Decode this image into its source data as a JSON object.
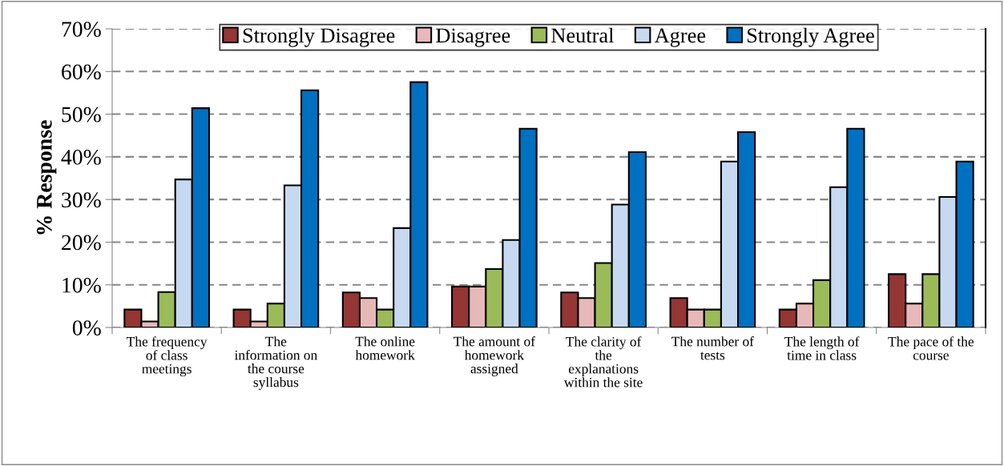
{
  "chart_data": {
    "type": "bar",
    "ylabel": "% Response",
    "categories": [
      "The frequency\nof class\nmeetings",
      "The\ninformation on\nthe course\nsyllabus",
      "The online\nhomework",
      "The amount of\nhomework\nassigned",
      "The clarity of\nthe\nexplanations\nwithin the site",
      "The number of\ntests",
      "The length of\ntime in class",
      "The pace of the\ncourse"
    ],
    "series": [
      {
        "name": "Strongly Disagree",
        "color": "#943634",
        "values": [
          4.2,
          4.2,
          8.2,
          9.6,
          8.2,
          6.9,
          4.2,
          12.5
        ]
      },
      {
        "name": "Disagree",
        "color": "#e6b9b8",
        "values": [
          1.4,
          1.4,
          6.9,
          9.6,
          6.9,
          4.2,
          5.6,
          5.6
        ]
      },
      {
        "name": "Neutral",
        "color": "#9bbb59",
        "values": [
          8.3,
          5.6,
          4.2,
          13.7,
          15.1,
          4.2,
          11.1,
          12.5
        ]
      },
      {
        "name": "Agree",
        "color": "#c6d9f1",
        "values": [
          34.7,
          33.3,
          23.3,
          20.5,
          28.8,
          38.9,
          32.9,
          30.6
        ]
      },
      {
        "name": "Strongly Agree",
        "color": "#0070c0",
        "values": [
          51.4,
          55.6,
          57.5,
          46.6,
          41.1,
          45.8,
          46.6,
          38.9
        ]
      }
    ],
    "ylim": [
      0,
      70
    ],
    "yticks": [
      {
        "value": 0,
        "label": "0%"
      },
      {
        "value": 10,
        "label": "10%"
      },
      {
        "value": 20,
        "label": "20%"
      },
      {
        "value": 30,
        "label": "30%"
      },
      {
        "value": 40,
        "label": "40%"
      },
      {
        "value": 50,
        "label": "50%"
      },
      {
        "value": 60,
        "label": "60%"
      },
      {
        "value": 70,
        "label": "70%"
      }
    ],
    "grid": "y",
    "legend": "top"
  }
}
